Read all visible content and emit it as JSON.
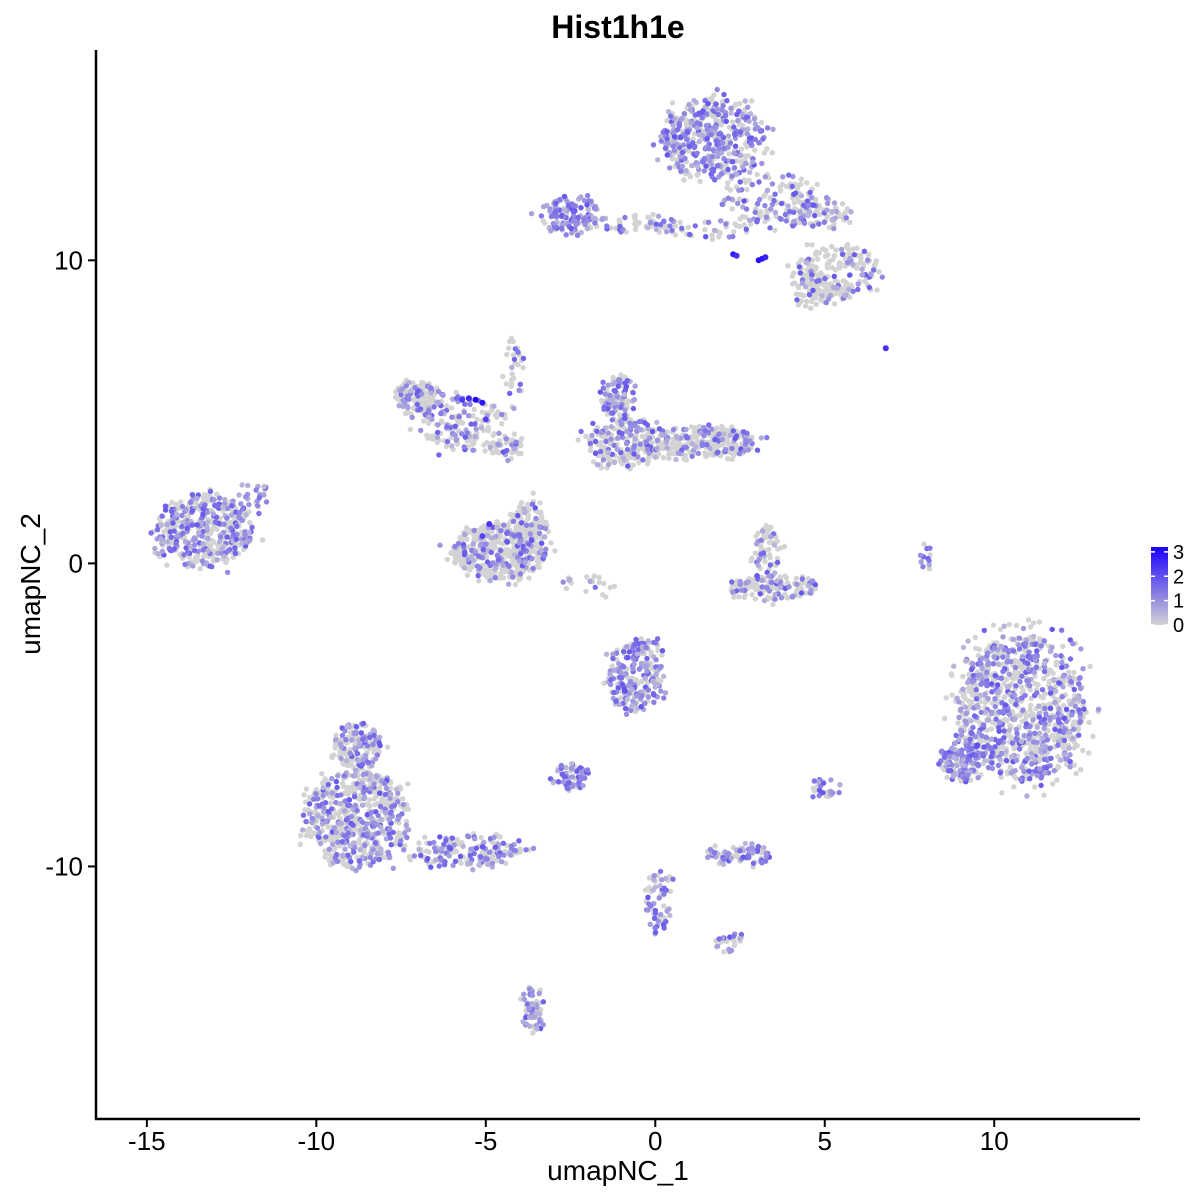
{
  "chart_data": {
    "type": "scatter",
    "title": "Hist1h1e",
    "xlabel": "umapNC_1",
    "ylabel": "umapNC_2",
    "xlim": [
      -16.5,
      14.3
    ],
    "ylim": [
      -18.3,
      17.6
    ],
    "x_ticks": [
      -15,
      -10,
      -5,
      0,
      5,
      10
    ],
    "x_tick_labels": [
      "-15",
      "-10",
      "-5",
      "0",
      "5",
      "10"
    ],
    "y_ticks": [
      -10,
      0,
      10
    ],
    "y_tick_labels": [
      "-10",
      "0",
      "10"
    ],
    "grid": false,
    "legend": {
      "placement": "right",
      "labels": [
        "3",
        "2",
        "1",
        "0"
      ],
      "low_color": "#d3d3d3",
      "high_color": "#1a00ff",
      "max": 3.2
    },
    "clusters": [
      {
        "cx": 1.7,
        "cy": 14.0,
        "rx": 1.5,
        "ry": 1.3,
        "n": 450,
        "expr": 0.55
      },
      {
        "cx": 3.5,
        "cy": 12.0,
        "rx": 1.6,
        "ry": 0.9,
        "n": 130,
        "expr": 0.35
      },
      {
        "cx": 4.7,
        "cy": 11.5,
        "rx": 1.1,
        "ry": 0.5,
        "n": 80,
        "expr": 0.4
      },
      {
        "cx": 5.4,
        "cy": 9.6,
        "rx": 1.2,
        "ry": 0.9,
        "n": 200,
        "expr": 0.2
      },
      {
        "cx": 4.6,
        "cy": 9.0,
        "rx": 0.6,
        "ry": 0.6,
        "n": 50,
        "expr": 0.25
      },
      {
        "cx": -2.5,
        "cy": 11.5,
        "rx": 0.9,
        "ry": 0.6,
        "n": 120,
        "expr": 0.85
      },
      {
        "cx": -0.5,
        "cy": 11.2,
        "rx": 1.3,
        "ry": 0.3,
        "n": 50,
        "expr": 0.4
      },
      {
        "cx": 1.6,
        "cy": 11.0,
        "rx": 1.2,
        "ry": 0.3,
        "n": 35,
        "expr": 0.3
      },
      {
        "cx": -13.3,
        "cy": 1.1,
        "rx": 1.4,
        "ry": 1.2,
        "n": 450,
        "expr": 0.45
      },
      {
        "cx": -11.9,
        "cy": 2.2,
        "rx": 0.5,
        "ry": 0.5,
        "n": 25,
        "expr": 0.8
      },
      {
        "cx": -7.0,
        "cy": 5.5,
        "rx": 0.7,
        "ry": 0.5,
        "n": 130,
        "expr": 0.25
      },
      {
        "cx": -5.7,
        "cy": 4.6,
        "rx": 1.3,
        "ry": 0.9,
        "n": 160,
        "expr": 0.4
      },
      {
        "cx": -4.4,
        "cy": 3.8,
        "rx": 0.6,
        "ry": 0.4,
        "n": 50,
        "expr": 0.25
      },
      {
        "cx": -4.6,
        "cy": 0.4,
        "rx": 1.4,
        "ry": 0.9,
        "n": 480,
        "expr": 0.2
      },
      {
        "cx": -3.7,
        "cy": 1.3,
        "rx": 0.5,
        "ry": 0.8,
        "n": 100,
        "expr": 0.25
      },
      {
        "cx": -4.2,
        "cy": 6.2,
        "rx": 0.3,
        "ry": 1.2,
        "n": 30,
        "expr": 0.3
      },
      {
        "cx": -1.1,
        "cy": 5.5,
        "rx": 0.5,
        "ry": 0.7,
        "n": 100,
        "expr": 0.6
      },
      {
        "cx": -0.8,
        "cy": 4.0,
        "rx": 1.2,
        "ry": 0.8,
        "n": 220,
        "expr": 0.35
      },
      {
        "cx": 1.5,
        "cy": 4.0,
        "rx": 1.5,
        "ry": 0.5,
        "n": 250,
        "expr": 0.3
      },
      {
        "cx": 3.5,
        "cy": -0.8,
        "rx": 1.3,
        "ry": 0.4,
        "n": 150,
        "expr": 0.3
      },
      {
        "cx": 3.3,
        "cy": 0.5,
        "rx": 0.5,
        "ry": 0.8,
        "n": 60,
        "expr": 0.3
      },
      {
        "cx": 10.8,
        "cy": -4.8,
        "rx": 1.9,
        "ry": 2.4,
        "n": 1000,
        "expr": 0.45
      },
      {
        "cx": 9.0,
        "cy": -6.5,
        "rx": 0.6,
        "ry": 0.6,
        "n": 120,
        "expr": 0.7
      },
      {
        "cx": -0.6,
        "cy": -3.8,
        "rx": 0.8,
        "ry": 1.1,
        "n": 200,
        "expr": 0.65
      },
      {
        "cx": -8.8,
        "cy": -8.4,
        "rx": 1.5,
        "ry": 1.6,
        "n": 600,
        "expr": 0.4
      },
      {
        "cx": -8.8,
        "cy": -6.0,
        "rx": 0.7,
        "ry": 0.8,
        "n": 150,
        "expr": 0.45
      },
      {
        "cx": -5.5,
        "cy": -9.5,
        "rx": 1.5,
        "ry": 0.5,
        "n": 180,
        "expr": 0.4
      },
      {
        "cx": -2.5,
        "cy": -7.0,
        "rx": 0.5,
        "ry": 0.4,
        "n": 60,
        "expr": 0.9
      },
      {
        "cx": 2.5,
        "cy": -9.6,
        "rx": 0.9,
        "ry": 0.3,
        "n": 80,
        "expr": 0.65
      },
      {
        "cx": 0.1,
        "cy": -11.0,
        "rx": 0.4,
        "ry": 1.2,
        "n": 60,
        "expr": 0.6
      },
      {
        "cx": 2.2,
        "cy": -12.5,
        "rx": 0.5,
        "ry": 0.3,
        "n": 25,
        "expr": 0.5
      },
      {
        "cx": -3.6,
        "cy": -14.7,
        "rx": 0.3,
        "ry": 0.8,
        "n": 60,
        "expr": 0.7
      },
      {
        "cx": 5.0,
        "cy": -7.4,
        "rx": 0.4,
        "ry": 0.3,
        "n": 25,
        "expr": 0.5
      },
      {
        "cx": -0.3,
        "cy": -2.8,
        "rx": 0.5,
        "ry": 0.3,
        "n": 30,
        "expr": 0.5
      },
      {
        "cx": 8.0,
        "cy": 0.2,
        "rx": 0.2,
        "ry": 0.6,
        "n": 12,
        "expr": 0.5
      },
      {
        "cx": -2.0,
        "cy": -0.8,
        "rx": 1.0,
        "ry": 0.4,
        "n": 20,
        "expr": 0.25
      }
    ],
    "highlights": [
      {
        "x": 3.05,
        "y": 10.0,
        "v": 3.0
      },
      {
        "x": 3.15,
        "y": 10.05,
        "v": 2.9
      },
      {
        "x": 3.25,
        "y": 10.1,
        "v": 2.7
      },
      {
        "x": 2.3,
        "y": 10.2,
        "v": 2.8
      },
      {
        "x": 2.4,
        "y": 10.15,
        "v": 2.5
      },
      {
        "x": 6.8,
        "y": 7.1,
        "v": 2.5
      },
      {
        "x": -5.5,
        "y": 5.45,
        "v": 2.6
      },
      {
        "x": -5.3,
        "y": 5.4,
        "v": 3.1
      },
      {
        "x": -5.7,
        "y": 5.4,
        "v": 2.3
      },
      {
        "x": -5.1,
        "y": 5.3,
        "v": 2.9
      },
      {
        "x": -5.0,
        "y": 4.75,
        "v": 2.2
      },
      {
        "x": -4.9,
        "y": 1.3,
        "v": 2.4
      },
      {
        "x": -5.1,
        "y": 0.9,
        "v": 2.2
      },
      {
        "x": -0.9,
        "y": -4.2,
        "v": 2.0
      },
      {
        "x": 9.5,
        "y": -6.0,
        "v": 2.0
      }
    ]
  }
}
